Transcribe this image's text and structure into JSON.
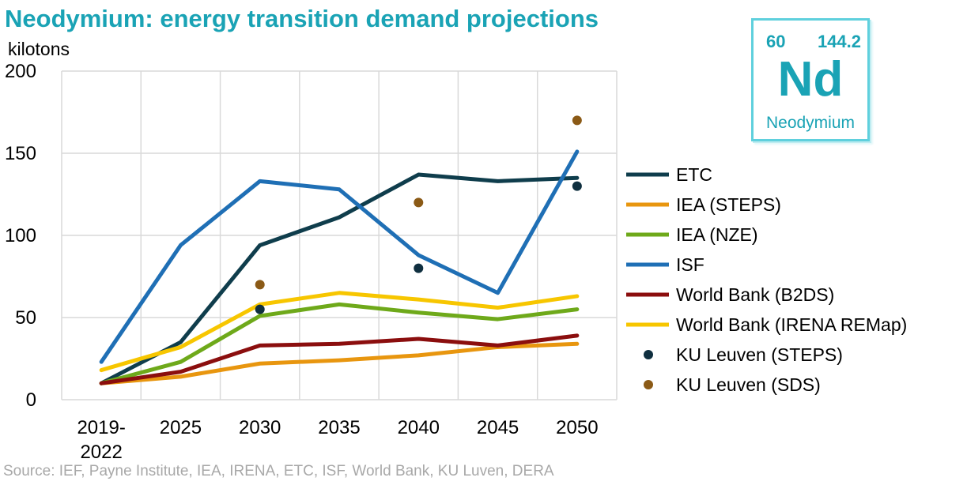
{
  "title": "Neodymium: energy transition demand projections",
  "unit_label": "kilotons",
  "source": "Source: IEF, Payne Institute, IEA, IRENA, ETC, ISF, World Bank, KU Luven, DERA",
  "element_tile": {
    "atomic_number": "60",
    "atomic_mass": "144.2",
    "symbol": "Nd",
    "name": "Neodymium"
  },
  "chart_data": {
    "type": "line",
    "title": "Neodymium: energy transition demand projections",
    "ylabel": "kilotons",
    "xlabel": "",
    "categories": [
      [
        "2019-",
        "2022"
      ],
      [
        "2025"
      ],
      [
        "2030"
      ],
      [
        "2035"
      ],
      [
        "2040"
      ],
      [
        "2045"
      ],
      [
        "2050"
      ]
    ],
    "ylim": [
      0,
      200
    ],
    "yticks": [
      0,
      50,
      100,
      150,
      200
    ],
    "grid": true,
    "legend_position": "right",
    "series": [
      {
        "name": "ETC",
        "kind": "line",
        "color": "#0f3d4c",
        "values": [
          10,
          35,
          94,
          111,
          137,
          133,
          135
        ]
      },
      {
        "name": "IEA (STEPS)",
        "kind": "line",
        "color": "#e8960f",
        "values": [
          10,
          14,
          22,
          24,
          27,
          32,
          34
        ]
      },
      {
        "name": "IEA (NZE)",
        "kind": "line",
        "color": "#6ea91a",
        "values": [
          10,
          23,
          51,
          58,
          53,
          49,
          55
        ]
      },
      {
        "name": "ISF",
        "kind": "line",
        "color": "#1f6fb5",
        "values": [
          23,
          94,
          133,
          128,
          88,
          65,
          151
        ]
      },
      {
        "name": "World Bank (B2DS)",
        "kind": "line",
        "color": "#8b0e0e",
        "values": [
          10,
          17,
          33,
          34,
          37,
          33,
          39
        ]
      },
      {
        "name": "World Bank (IRENA REMap)",
        "kind": "line",
        "color": "#f7c600",
        "values": [
          18,
          32,
          58,
          65,
          61,
          56,
          63
        ]
      },
      {
        "name": "KU Leuven (STEPS)",
        "kind": "scatter",
        "color": "#0f2f3f",
        "values": [
          null,
          null,
          55,
          null,
          80,
          null,
          130
        ]
      },
      {
        "name": "KU Leuven (SDS)",
        "kind": "scatter",
        "color": "#8b5a16",
        "values": [
          null,
          null,
          70,
          null,
          120,
          null,
          170
        ]
      }
    ]
  }
}
